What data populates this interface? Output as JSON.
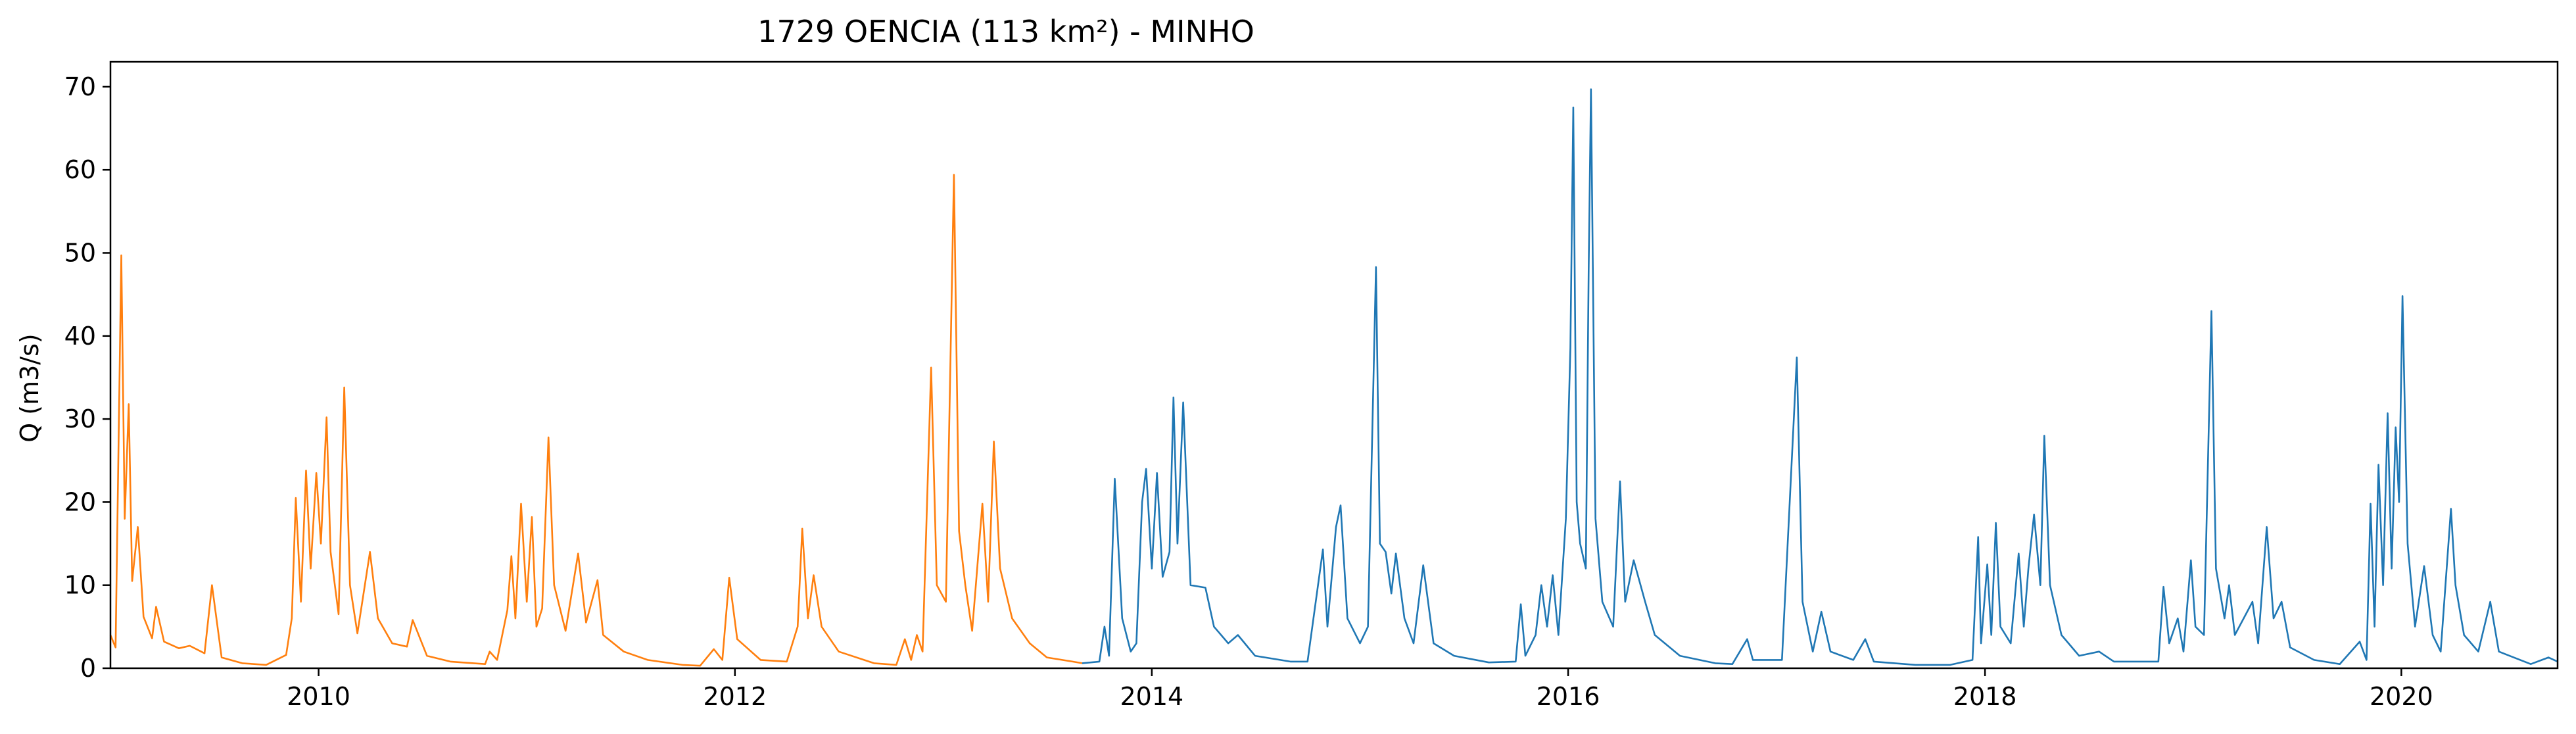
{
  "chart_data": {
    "type": "line",
    "title": "1729 OENCIA (113 km²) - MINHO",
    "xlabel": "",
    "ylabel": "Q (m3/s)",
    "xlim": [
      "2009-01-01",
      "2020-10-01"
    ],
    "ylim": [
      0,
      73
    ],
    "x_ticks": [
      "2010",
      "2012",
      "2014",
      "2016",
      "2018",
      "2020"
    ],
    "y_ticks": [
      0,
      10,
      20,
      30,
      40,
      50,
      60,
      70
    ],
    "grid": false,
    "legend": "none",
    "series": [
      {
        "color": "#ff7f0e",
        "points": [
          [
            "2009-01-01",
            4.0
          ],
          [
            "2009-01-10",
            2.5
          ],
          [
            "2009-01-20",
            49.7
          ],
          [
            "2009-01-26",
            18.0
          ],
          [
            "2009-02-02",
            31.8
          ],
          [
            "2009-02-08",
            10.5
          ],
          [
            "2009-02-18",
            17.0
          ],
          [
            "2009-02-28",
            6.2
          ],
          [
            "2009-03-15",
            3.6
          ],
          [
            "2009-03-22",
            7.4
          ],
          [
            "2009-04-05",
            3.2
          ],
          [
            "2009-05-01",
            2.4
          ],
          [
            "2009-05-20",
            2.7
          ],
          [
            "2009-06-15",
            1.8
          ],
          [
            "2009-06-28",
            10.0
          ],
          [
            "2009-07-15",
            1.3
          ],
          [
            "2009-08-20",
            0.6
          ],
          [
            "2009-10-01",
            0.4
          ],
          [
            "2009-11-05",
            1.6
          ],
          [
            "2009-11-15",
            6.0
          ],
          [
            "2009-11-22",
            20.5
          ],
          [
            "2009-12-01",
            8.0
          ],
          [
            "2009-12-10",
            23.8
          ],
          [
            "2009-12-18",
            12.0
          ],
          [
            "2009-12-28",
            23.5
          ],
          [
            "2010-01-05",
            15.0
          ],
          [
            "2010-01-15",
            30.2
          ],
          [
            "2010-01-22",
            14.0
          ],
          [
            "2010-02-05",
            6.5
          ],
          [
            "2010-02-15",
            33.8
          ],
          [
            "2010-02-25",
            10.0
          ],
          [
            "2010-03-10",
            4.2
          ],
          [
            "2010-04-01",
            14.0
          ],
          [
            "2010-04-15",
            6.0
          ],
          [
            "2010-05-10",
            3.0
          ],
          [
            "2010-06-05",
            2.6
          ],
          [
            "2010-06-15",
            5.8
          ],
          [
            "2010-07-10",
            1.5
          ],
          [
            "2010-08-20",
            0.8
          ],
          [
            "2010-10-20",
            0.5
          ],
          [
            "2010-10-28",
            2.0
          ],
          [
            "2010-11-10",
            1.0
          ],
          [
            "2010-11-28",
            7.0
          ],
          [
            "2010-12-05",
            13.5
          ],
          [
            "2010-12-12",
            6.0
          ],
          [
            "2010-12-22",
            19.8
          ],
          [
            "2011-01-01",
            8.0
          ],
          [
            "2011-01-10",
            18.2
          ],
          [
            "2011-01-18",
            5.0
          ],
          [
            "2011-01-28",
            7.2
          ],
          [
            "2011-02-08",
            27.8
          ],
          [
            "2011-02-18",
            10.0
          ],
          [
            "2011-03-10",
            4.5
          ],
          [
            "2011-04-01",
            13.8
          ],
          [
            "2011-04-15",
            5.5
          ],
          [
            "2011-05-05",
            10.6
          ],
          [
            "2011-05-15",
            4.0
          ],
          [
            "2011-06-20",
            2.0
          ],
          [
            "2011-08-01",
            1.0
          ],
          [
            "2011-10-01",
            0.4
          ],
          [
            "2011-11-01",
            0.3
          ],
          [
            "2011-11-25",
            2.3
          ],
          [
            "2011-12-10",
            1.0
          ],
          [
            "2011-12-22",
            10.9
          ],
          [
            "2012-01-05",
            3.5
          ],
          [
            "2012-02-15",
            1.0
          ],
          [
            "2012-04-01",
            0.8
          ],
          [
            "2012-04-20",
            5.0
          ],
          [
            "2012-04-28",
            16.8
          ],
          [
            "2012-05-08",
            6.0
          ],
          [
            "2012-05-18",
            11.2
          ],
          [
            "2012-06-01",
            5.0
          ],
          [
            "2012-07-01",
            2.0
          ],
          [
            "2012-09-01",
            0.6
          ],
          [
            "2012-10-10",
            0.4
          ],
          [
            "2012-10-25",
            3.5
          ],
          [
            "2012-11-05",
            1.0
          ],
          [
            "2012-11-15",
            4.0
          ],
          [
            "2012-11-25",
            2.0
          ],
          [
            "2012-12-10",
            36.2
          ],
          [
            "2012-12-20",
            10.0
          ],
          [
            "2013-01-05",
            8.0
          ],
          [
            "2013-01-19",
            59.4
          ],
          [
            "2013-01-28",
            16.5
          ],
          [
            "2013-02-08",
            10.0
          ],
          [
            "2013-02-20",
            4.5
          ],
          [
            "2013-03-10",
            19.8
          ],
          [
            "2013-03-20",
            8.0
          ],
          [
            "2013-03-30",
            27.3
          ],
          [
            "2013-04-10",
            12.0
          ],
          [
            "2013-05-01",
            6.0
          ],
          [
            "2013-06-01",
            3.0
          ],
          [
            "2013-07-01",
            1.3
          ],
          [
            "2013-08-15",
            0.8
          ],
          [
            "2013-09-01",
            0.6
          ]
        ]
      },
      {
        "color": "#1f77b4",
        "points": [
          [
            "2013-09-01",
            0.6
          ],
          [
            "2013-10-01",
            0.8
          ],
          [
            "2013-10-10",
            5.0
          ],
          [
            "2013-10-18",
            1.5
          ],
          [
            "2013-10-28",
            22.8
          ],
          [
            "2013-11-10",
            6.0
          ],
          [
            "2013-11-25",
            2.0
          ],
          [
            "2013-12-05",
            3.0
          ],
          [
            "2013-12-15",
            20.0
          ],
          [
            "2013-12-22",
            24.0
          ],
          [
            "2014-01-01",
            12.0
          ],
          [
            "2014-01-10",
            23.5
          ],
          [
            "2014-01-20",
            11.0
          ],
          [
            "2014-02-01",
            14.0
          ],
          [
            "2014-02-08",
            32.6
          ],
          [
            "2014-02-15",
            15.0
          ],
          [
            "2014-02-25",
            32.0
          ],
          [
            "2014-03-10",
            10.0
          ],
          [
            "2014-04-05",
            9.7
          ],
          [
            "2014-04-20",
            5.0
          ],
          [
            "2014-05-15",
            3.0
          ],
          [
            "2014-06-01",
            4.0
          ],
          [
            "2014-07-01",
            1.5
          ],
          [
            "2014-09-01",
            0.8
          ],
          [
            "2014-10-01",
            0.8
          ],
          [
            "2014-10-28",
            14.3
          ],
          [
            "2014-11-05",
            5.0
          ],
          [
            "2014-11-20",
            17.0
          ],
          [
            "2014-11-28",
            19.6
          ],
          [
            "2014-12-10",
            6.0
          ],
          [
            "2015-01-01",
            3.0
          ],
          [
            "2015-01-15",
            5.0
          ],
          [
            "2015-01-29",
            48.3
          ],
          [
            "2015-02-05",
            15.0
          ],
          [
            "2015-02-15",
            14.0
          ],
          [
            "2015-02-25",
            9.0
          ],
          [
            "2015-03-05",
            13.8
          ],
          [
            "2015-03-20",
            6.0
          ],
          [
            "2015-04-05",
            3.0
          ],
          [
            "2015-04-22",
            12.4
          ],
          [
            "2015-05-10",
            3.0
          ],
          [
            "2015-06-15",
            1.5
          ],
          [
            "2015-08-15",
            0.7
          ],
          [
            "2015-10-01",
            0.8
          ],
          [
            "2015-10-10",
            7.7
          ],
          [
            "2015-10-18",
            1.5
          ],
          [
            "2015-11-05",
            4.0
          ],
          [
            "2015-11-15",
            10.0
          ],
          [
            "2015-11-25",
            5.0
          ],
          [
            "2015-12-05",
            11.2
          ],
          [
            "2015-12-15",
            4.0
          ],
          [
            "2015-12-28",
            18.0
          ],
          [
            "2016-01-05",
            38.6
          ],
          [
            "2016-01-10",
            67.5
          ],
          [
            "2016-01-16",
            20.0
          ],
          [
            "2016-01-22",
            15.0
          ],
          [
            "2016-02-01",
            12.0
          ],
          [
            "2016-02-06",
            48.0
          ],
          [
            "2016-02-10",
            69.7
          ],
          [
            "2016-02-18",
            18.0
          ],
          [
            "2016-03-01",
            8.0
          ],
          [
            "2016-03-20",
            5.0
          ],
          [
            "2016-04-01",
            22.5
          ],
          [
            "2016-04-10",
            8.0
          ],
          [
            "2016-04-25",
            13.0
          ],
          [
            "2016-05-15",
            8.0
          ],
          [
            "2016-06-01",
            4.0
          ],
          [
            "2016-07-15",
            1.5
          ],
          [
            "2016-09-15",
            0.6
          ],
          [
            "2016-10-15",
            0.5
          ],
          [
            "2016-11-10",
            3.5
          ],
          [
            "2016-11-20",
            1.0
          ],
          [
            "2017-01-10",
            1.0
          ],
          [
            "2017-02-05",
            37.4
          ],
          [
            "2017-02-15",
            8.0
          ],
          [
            "2017-03-05",
            2.0
          ],
          [
            "2017-03-20",
            6.8
          ],
          [
            "2017-04-05",
            2.0
          ],
          [
            "2017-05-15",
            1.0
          ],
          [
            "2017-06-05",
            3.5
          ],
          [
            "2017-06-20",
            0.8
          ],
          [
            "2017-09-01",
            0.4
          ],
          [
            "2017-11-01",
            0.4
          ],
          [
            "2017-12-10",
            1.0
          ],
          [
            "2017-12-20",
            15.8
          ],
          [
            "2017-12-25",
            3.0
          ],
          [
            "2018-01-05",
            12.5
          ],
          [
            "2018-01-12",
            4.0
          ],
          [
            "2018-01-20",
            17.5
          ],
          [
            "2018-01-28",
            5.0
          ],
          [
            "2018-02-15",
            3.0
          ],
          [
            "2018-03-01",
            13.8
          ],
          [
            "2018-03-10",
            5.0
          ],
          [
            "2018-03-18",
            12.0
          ],
          [
            "2018-03-28",
            18.5
          ],
          [
            "2018-04-08",
            10.0
          ],
          [
            "2018-04-15",
            28.0
          ],
          [
            "2018-04-25",
            10.0
          ],
          [
            "2018-05-15",
            4.0
          ],
          [
            "2018-06-15",
            1.5
          ],
          [
            "2018-07-20",
            2.0
          ],
          [
            "2018-08-15",
            0.8
          ],
          [
            "2018-10-15",
            0.8
          ],
          [
            "2018-11-01",
            0.8
          ],
          [
            "2018-11-10",
            9.8
          ],
          [
            "2018-11-20",
            3.0
          ],
          [
            "2018-12-05",
            6.0
          ],
          [
            "2018-12-15",
            2.0
          ],
          [
            "2018-12-28",
            13.0
          ],
          [
            "2019-01-05",
            5.0
          ],
          [
            "2019-01-20",
            4.0
          ],
          [
            "2019-02-02",
            43.0
          ],
          [
            "2019-02-10",
            12.0
          ],
          [
            "2019-02-25",
            6.0
          ],
          [
            "2019-03-05",
            10.0
          ],
          [
            "2019-03-15",
            4.0
          ],
          [
            "2019-04-15",
            8.0
          ],
          [
            "2019-04-25",
            3.0
          ],
          [
            "2019-05-10",
            17.0
          ],
          [
            "2019-05-22",
            6.0
          ],
          [
            "2019-06-05",
            8.0
          ],
          [
            "2019-06-20",
            2.5
          ],
          [
            "2019-08-01",
            1.0
          ],
          [
            "2019-09-15",
            0.5
          ],
          [
            "2019-10-20",
            3.2
          ],
          [
            "2019-11-01",
            1.0
          ],
          [
            "2019-11-08",
            19.8
          ],
          [
            "2019-11-15",
            5.0
          ],
          [
            "2019-11-22",
            24.5
          ],
          [
            "2019-11-30",
            10.0
          ],
          [
            "2019-12-08",
            30.7
          ],
          [
            "2019-12-15",
            12.0
          ],
          [
            "2019-12-22",
            29.0
          ],
          [
            "2019-12-28",
            20.0
          ],
          [
            "2020-01-03",
            44.8
          ],
          [
            "2020-01-12",
            15.0
          ],
          [
            "2020-01-25",
            5.0
          ],
          [
            "2020-02-10",
            12.3
          ],
          [
            "2020-02-25",
            4.0
          ],
          [
            "2020-03-10",
            2.0
          ],
          [
            "2020-03-28",
            19.2
          ],
          [
            "2020-04-05",
            10.0
          ],
          [
            "2020-04-20",
            4.0
          ],
          [
            "2020-05-15",
            2.0
          ],
          [
            "2020-06-05",
            8.0
          ],
          [
            "2020-06-20",
            2.0
          ],
          [
            "2020-08-15",
            0.5
          ],
          [
            "2020-09-15",
            1.3
          ],
          [
            "2020-10-01",
            0.8
          ]
        ]
      }
    ]
  }
}
